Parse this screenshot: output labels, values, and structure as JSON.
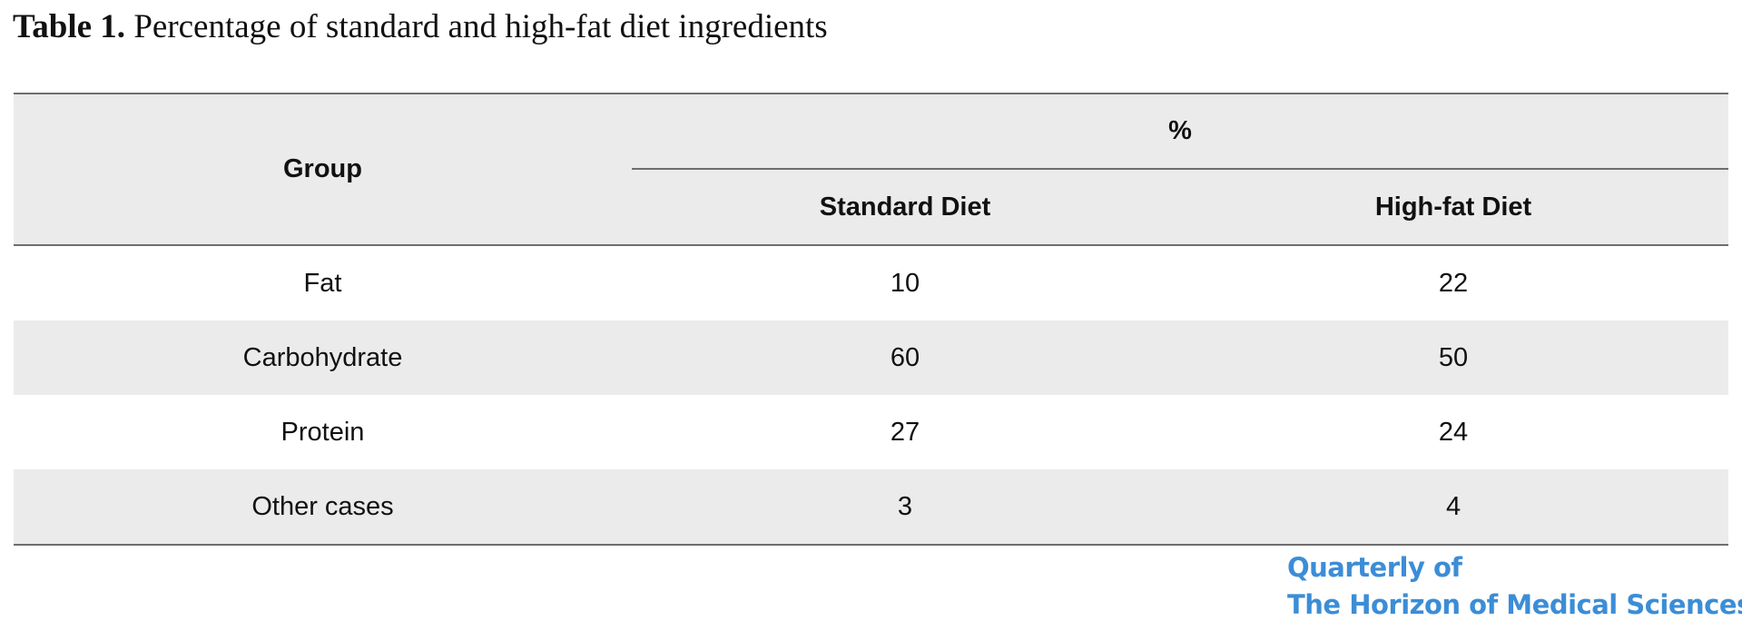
{
  "caption": {
    "label": "Table 1.",
    "text": "Percentage of standard and high-fat diet ingredients"
  },
  "table": {
    "group_header": "Group",
    "percent_header": "%",
    "columns": [
      "Standard Diet",
      "High-fat Diet"
    ],
    "rows": [
      {
        "group": "Fat",
        "standard": "10",
        "high_fat": "22"
      },
      {
        "group": "Carbohydrate",
        "standard": "60",
        "high_fat": "50"
      },
      {
        "group": "Protein",
        "standard": "27",
        "high_fat": "24"
      },
      {
        "group": "Other cases",
        "standard": "3",
        "high_fat": "4"
      }
    ]
  },
  "journal": {
    "line1": "Quarterly of",
    "line2": "The Horizon of Medical Sciences",
    "color": "#3c8dd6"
  }
}
